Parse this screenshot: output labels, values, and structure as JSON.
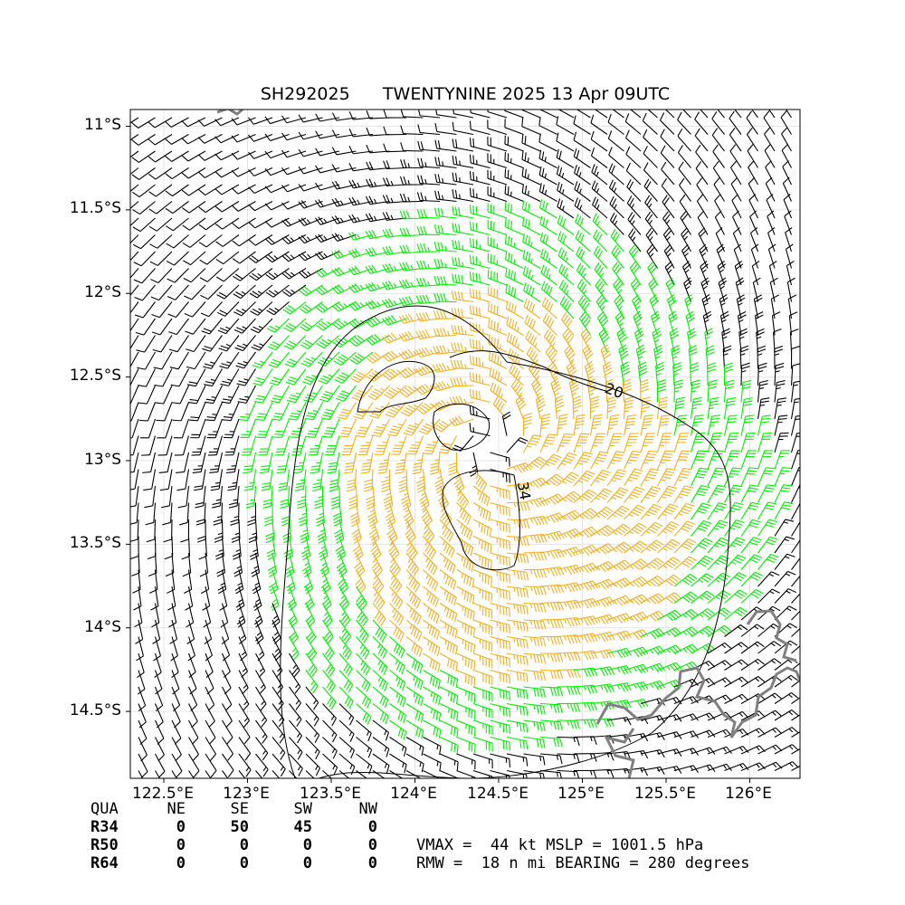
{
  "title": "SH292025      TWENTYNINE 2025 13 Apr 09UTC",
  "colors": {
    "calm": "#000000",
    "gale": "#00ee00",
    "storm": "#f0b020",
    "coast": "#808080"
  },
  "map": {
    "lon_range": [
      122.3,
      126.3
    ],
    "lat_range": [
      -14.9,
      -10.9
    ],
    "lon_ticks": [
      "122.5°E",
      "123°E",
      "123.5°E",
      "124°E",
      "124.5°E",
      "125°E",
      "125.5°E",
      "126°E"
    ],
    "lat_ticks": [
      "11°S",
      "11.5°S",
      "12°S",
      "12.5°S",
      "13°S",
      "13.5°S",
      "14°S",
      "14.5°S"
    ],
    "contour_labels": [
      "20",
      "34"
    ]
  },
  "chart_data": {
    "type": "wind-barb-map",
    "storm_id": "SH292025",
    "storm_name": "TWENTYNINE",
    "center": {
      "lon": 124.45,
      "lat": -12.9
    },
    "wind_radii_table": {
      "header": [
        "QUA",
        "NE",
        "SE",
        "SW",
        "NW"
      ],
      "rows": [
        {
          "label": "R34",
          "values": [
            "0",
            "50",
            "45",
            "0"
          ]
        },
        {
          "label": "R50",
          "values": [
            "0",
            "0",
            "0",
            "0"
          ]
        },
        {
          "label": "R64",
          "values": [
            "0",
            "0",
            "0",
            "0"
          ]
        }
      ]
    },
    "vmax_kt": 44,
    "mslp_hpa": 1001.5,
    "rmw_nmi": 18,
    "bearing_deg": 280
  },
  "stats": {
    "line1": "VMAX =  44 kt MSLP = 1001.5 hPa",
    "line2": "RMW =  18 n mi BEARING = 280 degrees"
  }
}
